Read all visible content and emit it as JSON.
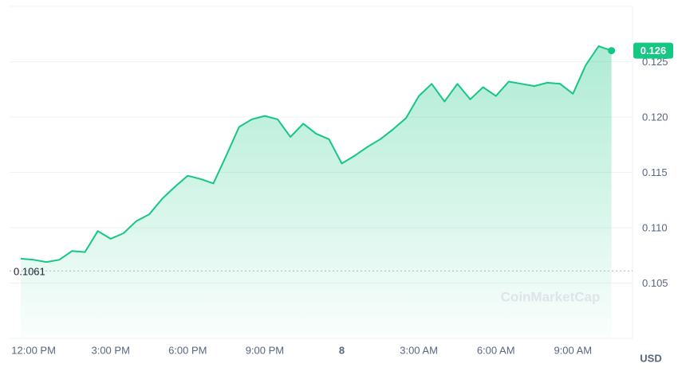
{
  "chart_data": {
    "type": "line",
    "color": "#16c784",
    "categories": [
      null,
      "12:00 PM",
      null,
      null,
      null,
      null,
      null,
      "3:00 PM",
      null,
      null,
      null,
      null,
      null,
      "6:00 PM",
      null,
      null,
      null,
      null,
      null,
      "9:00 PM",
      null,
      null,
      null,
      null,
      null,
      "8",
      null,
      null,
      null,
      null,
      null,
      "3:00 AM",
      null,
      null,
      null,
      null,
      null,
      "6:00 AM",
      null,
      null,
      null,
      null,
      null,
      "9:00 AM",
      null,
      null,
      null
    ],
    "values": [
      0.1072,
      0.1071,
      0.1069,
      0.1071,
      0.1079,
      0.1078,
      0.1097,
      0.109,
      0.1095,
      0.1106,
      0.1112,
      0.1126,
      0.1137,
      0.1147,
      0.1144,
      0.114,
      0.1165,
      0.1191,
      0.1198,
      0.1201,
      0.1198,
      0.1182,
      0.1194,
      0.1185,
      0.118,
      0.1158,
      0.1165,
      0.1173,
      0.118,
      0.1189,
      0.1199,
      0.1219,
      0.123,
      0.1214,
      0.123,
      0.1216,
      0.1227,
      0.1219,
      0.1232,
      0.123,
      0.1228,
      0.1231,
      0.123,
      0.1221,
      0.1247,
      0.1264,
      0.126
    ],
    "ylim": [
      0.1,
      0.13
    ],
    "yticks": [
      0.105,
      {
        "value": 0.11,
        "label": "0.110"
      },
      0.115,
      {
        "value": 0.12,
        "label": "0.120"
      },
      0.125
    ],
    "grid": true,
    "reference_line": 0.1061,
    "currency": "USD",
    "watermark": "CoinMarketCap"
  }
}
